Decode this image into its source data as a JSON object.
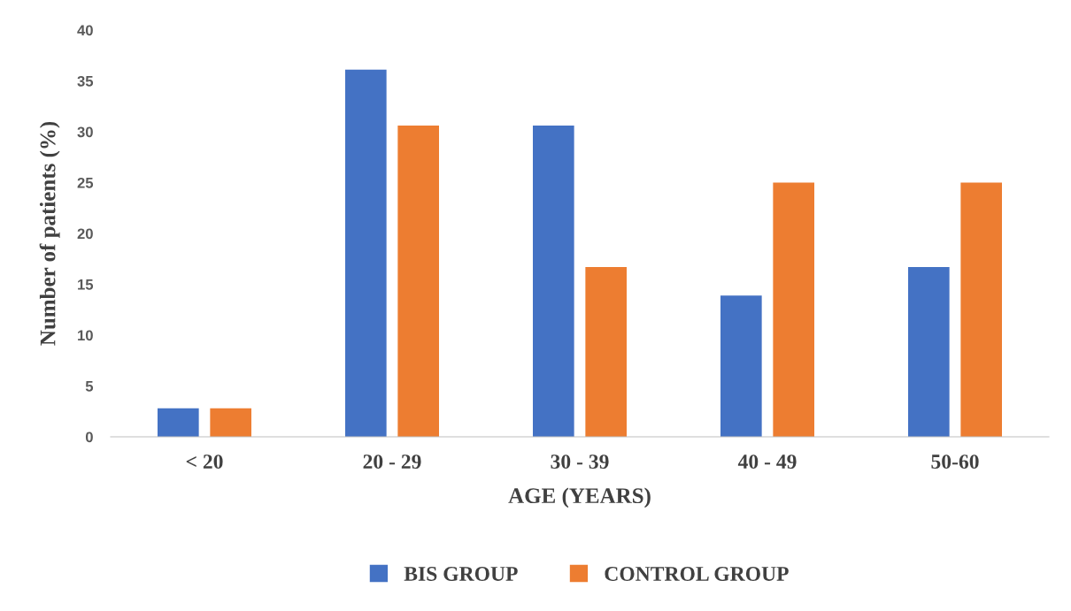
{
  "chart_data": {
    "type": "bar",
    "xlabel": "AGE (YEARS)",
    "ylabel": "Number of patients (%)",
    "categories": [
      "< 20",
      "20 - 29",
      "30 - 39",
      "40 - 49",
      "50-60"
    ],
    "series": [
      {
        "name": "BIS GROUP",
        "color": "#4472c4",
        "values": [
          2.8,
          36.1,
          30.6,
          13.9,
          16.7
        ]
      },
      {
        "name": "CONTROL GROUP",
        "color": "#ed7d31",
        "values": [
          2.8,
          30.6,
          16.7,
          25,
          25
        ]
      }
    ],
    "ylim": [
      0,
      40
    ],
    "yticks": [
      0,
      5,
      10,
      15,
      20,
      25,
      30,
      35,
      40
    ],
    "grid": false,
    "legend": "bottom"
  }
}
